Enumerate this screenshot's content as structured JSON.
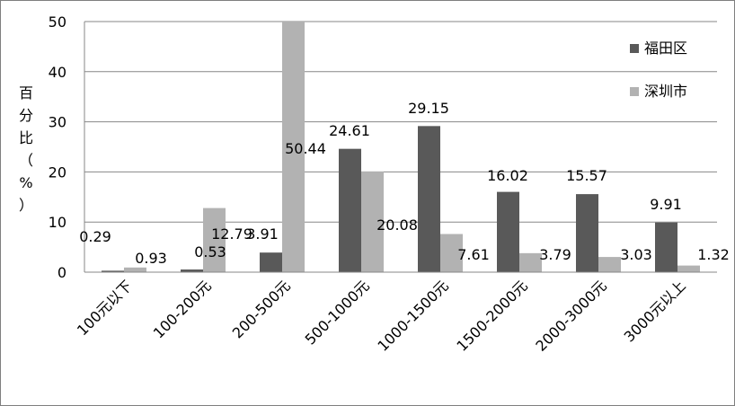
{
  "chart_data": {
    "type": "bar",
    "title": "",
    "xlabel": "",
    "ylabel": "百分比（%）",
    "ylim": [
      0,
      50
    ],
    "yticks": [
      0,
      10,
      20,
      30,
      40,
      50
    ],
    "grid": true,
    "legend_position": "top-right",
    "categories": [
      "100元以下",
      "100-200元",
      "200-500元",
      "500-1000元",
      "1000-1500元",
      "1500-2000元",
      "2000-3000元",
      "3000元以上"
    ],
    "series": [
      {
        "name": "福田区",
        "color": "#595959",
        "values": [
          0.29,
          0.53,
          3.91,
          24.61,
          29.15,
          16.02,
          15.57,
          9.91
        ]
      },
      {
        "name": "深圳市",
        "color": "#b2b2b2",
        "values": [
          0.93,
          12.79,
          50.44,
          20.08,
          7.61,
          3.79,
          3.03,
          1.32
        ]
      }
    ]
  }
}
